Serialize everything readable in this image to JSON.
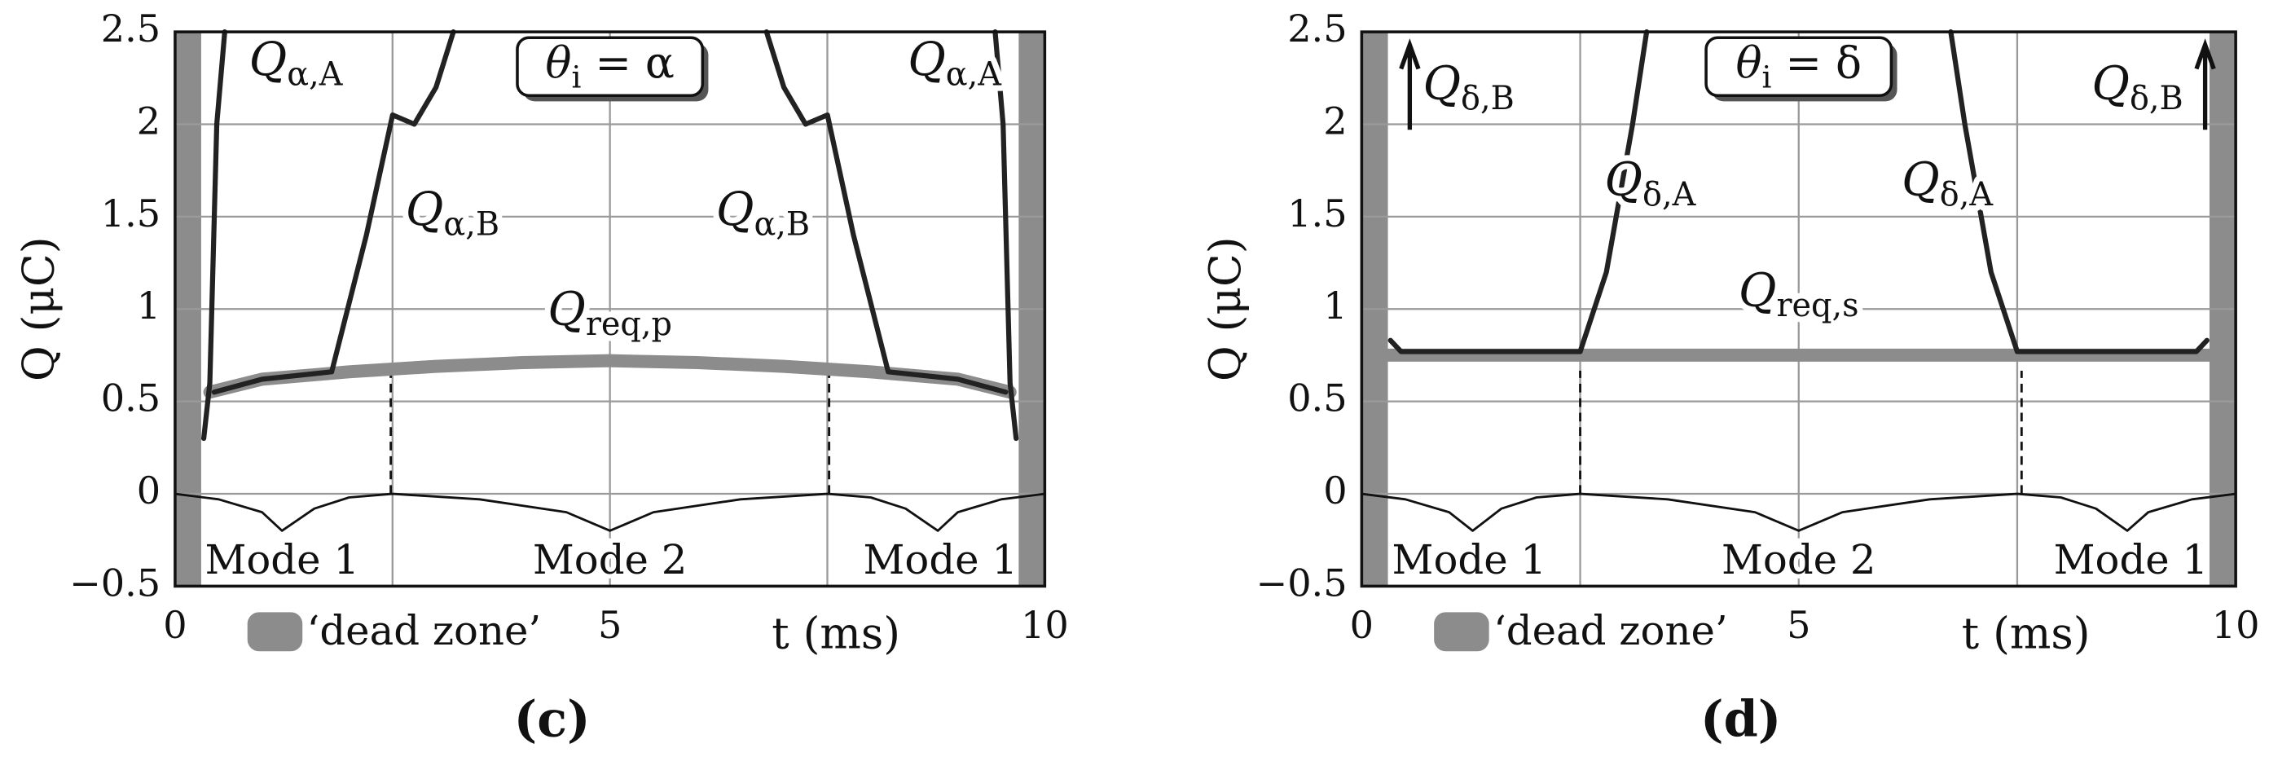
{
  "chart_data": [
    {
      "type": "line",
      "caption": "(c)",
      "title": [
        "θ",
        "i",
        " = α"
      ],
      "xlabel": "t (ms)",
      "ylabel": "Q (μC)",
      "xlim": [
        0,
        10
      ],
      "ylim": [
        -0.5,
        2.5
      ],
      "xticks": [
        0,
        5,
        10
      ],
      "xgrid": [
        2.5,
        5,
        7.5
      ],
      "yticks": [
        {
          "value": -0.5,
          "label": "−0.5"
        },
        0,
        0.5,
        1,
        1.5,
        2,
        2.5
      ],
      "dead_zones": [
        [
          0,
          0.3
        ],
        [
          9.7,
          10
        ]
      ],
      "dead_zone_color": "#8c8c8c",
      "dead_zone_label": "‘dead zone’",
      "dashed_x": [
        2.48,
        7.52
      ],
      "modes": [
        "Mode 1",
        "Mode 2",
        "Mode 1"
      ],
      "series": [
        {
          "color": "#8c8c8c",
          "width": 9,
          "x": [
            0.4,
            1,
            2,
            3,
            4,
            5,
            6,
            7,
            8,
            9,
            9.6
          ],
          "values": [
            0.55,
            0.62,
            0.66,
            0.69,
            0.71,
            0.72,
            0.71,
            0.69,
            0.66,
            0.62,
            0.55
          ]
        },
        {
          "color": "#222222",
          "width": 3.5,
          "x": [
            0.33,
            0.4,
            0.48,
            0.57,
            null,
            0.45,
            1,
            1.8,
            2.2,
            2.5,
            2.75,
            3,
            3.2,
            null,
            6.8,
            7,
            7.25,
            7.5,
            7.8,
            8.2,
            9,
            9.55,
            null,
            9.43,
            9.52,
            9.6,
            9.67
          ],
          "values": [
            0.3,
            0.6,
            2.0,
            2.5,
            null,
            0.55,
            0.62,
            0.66,
            1.4,
            2.05,
            2.0,
            2.2,
            2.5,
            null,
            2.5,
            2.2,
            2.0,
            2.05,
            1.4,
            0.66,
            0.62,
            0.55,
            null,
            2.5,
            2.0,
            0.6,
            0.3
          ]
        },
        {
          "color": "#111111",
          "width": 1.6,
          "x": [
            0,
            0.5,
            1,
            1.23,
            1.6,
            2,
            2.5,
            3.5,
            4.5,
            5,
            5.5,
            6.5,
            7.5,
            8,
            8.4,
            8.77,
            9,
            9.5,
            10
          ],
          "values": [
            0,
            -0.03,
            -0.1,
            -0.2,
            -0.08,
            -0.02,
            0,
            -0.03,
            -0.1,
            -0.2,
            -0.1,
            -0.03,
            0,
            -0.02,
            -0.08,
            -0.2,
            -0.1,
            -0.03,
            0
          ]
        }
      ],
      "annotations": [
        [
          "Q",
          "α,A"
        ],
        [
          "Q",
          "α,A"
        ],
        [
          "Q",
          "α,B"
        ],
        [
          "Q",
          "α,B"
        ],
        [
          "Q",
          "req,p"
        ]
      ]
    },
    {
      "type": "line",
      "caption": "(d)",
      "title": [
        "θ",
        "i",
        " = δ"
      ],
      "xlabel": "t (ms)",
      "ylabel": "Q (μC)",
      "xlim": [
        0,
        10
      ],
      "ylim": [
        -0.5,
        2.5
      ],
      "xticks": [
        0,
        5,
        10
      ],
      "xgrid": [
        2.5,
        5,
        7.5
      ],
      "yticks": [
        {
          "value": -0.5,
          "label": "−0.5"
        },
        0,
        0.5,
        1,
        1.5,
        2,
        2.5
      ],
      "dead_zones": [
        [
          0,
          0.3
        ],
        [
          9.7,
          10
        ]
      ],
      "dead_zone_color": "#8c8c8c",
      "dead_zone_label": "‘dead zone’",
      "dashed_x": [
        2.5,
        7.55
      ],
      "modes": [
        "Mode 1",
        "Mode 2",
        "Mode 1"
      ],
      "series": [
        {
          "color": "#8c8c8c",
          "width": 9,
          "x": [
            0.3,
            9.7
          ],
          "values": [
            0.75,
            0.75
          ]
        },
        {
          "color": "#222222",
          "width": 3.5,
          "x": [
            0.33,
            0.45,
            2.5,
            2.8,
            3.1,
            3.26,
            null,
            6.74,
            6.9,
            7.2,
            7.5,
            9.55,
            9.67
          ],
          "values": [
            0.83,
            0.77,
            0.77,
            1.2,
            2.0,
            2.5,
            null,
            2.5,
            2.0,
            1.2,
            0.77,
            0.77,
            0.83
          ]
        },
        {
          "color": "#111111",
          "width": 1.6,
          "x": [
            0,
            0.5,
            1,
            1.27,
            1.6,
            2,
            2.5,
            3.5,
            4.5,
            5,
            5.5,
            6.5,
            7.5,
            8,
            8.4,
            8.76,
            9,
            9.5,
            10
          ],
          "values": [
            0,
            -0.03,
            -0.1,
            -0.2,
            -0.08,
            -0.02,
            0,
            -0.03,
            -0.1,
            -0.2,
            -0.1,
            -0.03,
            0,
            -0.02,
            -0.08,
            -0.2,
            -0.1,
            -0.03,
            0
          ]
        }
      ],
      "annotations": [
        [
          "Q",
          "δ,B"
        ],
        [
          "Q",
          "δ,B"
        ],
        [
          "Q",
          "δ,A"
        ],
        [
          "Q",
          "δ,A"
        ],
        [
          "Q",
          "req,s"
        ]
      ]
    }
  ]
}
